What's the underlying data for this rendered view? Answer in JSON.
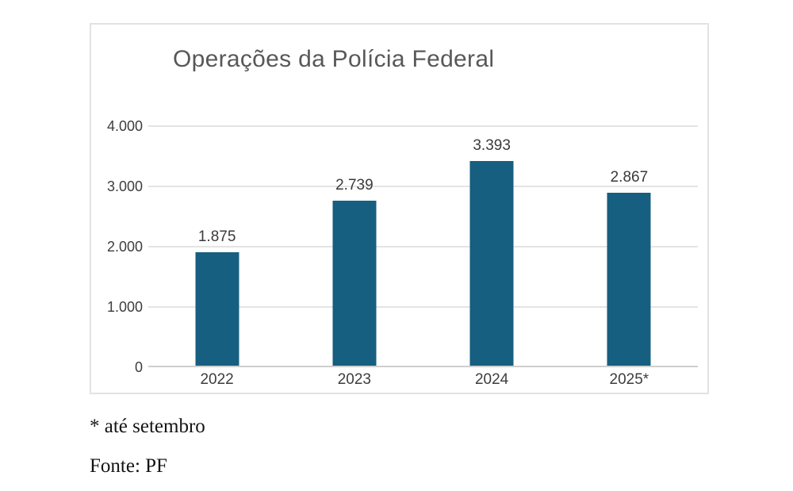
{
  "chart_card": {
    "title": "Operações da Polícia Federal"
  },
  "chart_data": {
    "type": "bar",
    "title": "Operações da Polícia Federal",
    "categories": [
      "2022",
      "2023",
      "2024",
      "2025*"
    ],
    "values": [
      1875,
      2739,
      3393,
      2867
    ],
    "value_labels": [
      "1.875",
      "2.739",
      "3.393",
      "2.867"
    ],
    "y_axis": {
      "tick_labels": [
        "4.000",
        "3.000",
        "2.000",
        "1.000",
        "0"
      ],
      "tick_values": [
        4000,
        3000,
        2000,
        1000,
        0
      ],
      "ylim": [
        0,
        4000
      ]
    },
    "xlabel": "",
    "ylabel": "",
    "grid": true,
    "legend": "none",
    "bar_color": "#165F80"
  },
  "notes": {
    "footnote": "* até setembro",
    "source": "Fonte: PF"
  },
  "colors": {
    "bar": "#165F80",
    "title_text": "#58585a",
    "tick_text": "#3d3d3d",
    "gridline": "#e4e4e4",
    "axis_line": "#cfcfcf",
    "card_border": "#e3e3e3",
    "background": "#ffffff",
    "note_text": "#141414"
  }
}
